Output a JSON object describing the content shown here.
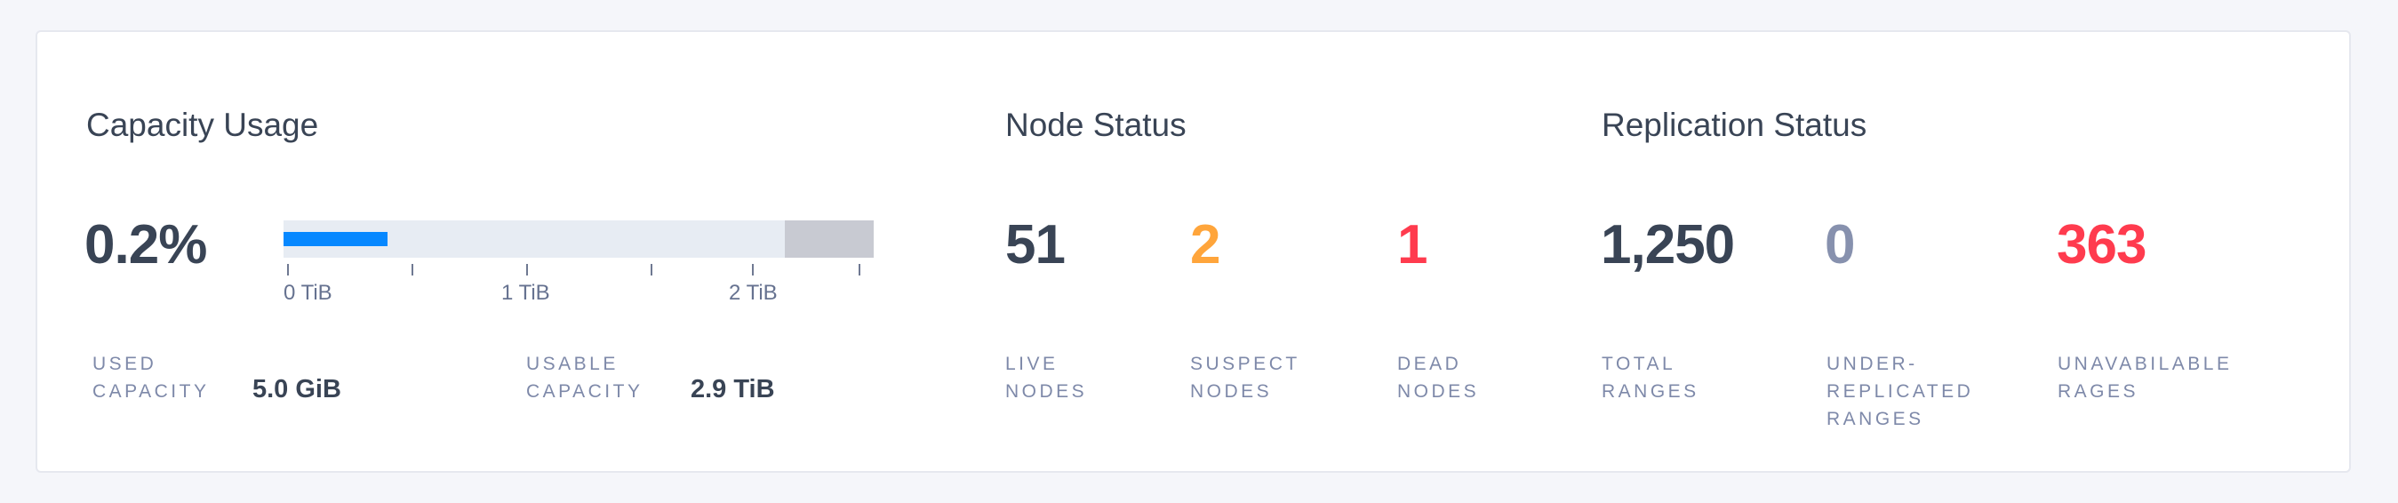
{
  "capacity": {
    "title": "Capacity Usage",
    "percent": "0.2%",
    "bar": {
      "used_fill_fraction": 0.176,
      "reserved_fraction": 0.15,
      "used_color": "#0788ff",
      "track_color": "#e7ecf3",
      "reserved_color": "#c8cad2"
    },
    "axis_labels": [
      "0 TiB",
      "1 TiB",
      "2 TiB"
    ],
    "used": {
      "label_line1": "USED",
      "label_line2": "CAPACITY",
      "value": "5.0 GiB"
    },
    "usable": {
      "label_line1": "USABLE",
      "label_line2": "CAPACITY",
      "value": "2.9 TiB"
    }
  },
  "nodes": {
    "title": "Node Status",
    "items": [
      {
        "value": "51",
        "label_line1": "LIVE",
        "label_line2": "NODES",
        "color": "#394455"
      },
      {
        "value": "2",
        "label_line1": "SUSPECT",
        "label_line2": "NODES",
        "color": "#ffa53b"
      },
      {
        "value": "1",
        "label_line1": "DEAD",
        "label_line2": "NODES",
        "color": "#ff3b4e"
      }
    ]
  },
  "replication": {
    "title": "Replication Status",
    "items": [
      {
        "value": "1,250",
        "label_line1": "TOTAL",
        "label_line2": "RANGES",
        "color": "#394455"
      },
      {
        "value": "0",
        "label_line1": "UNDER-",
        "label_line2": "REPLICATED",
        "label_line3": "RANGES",
        "color": "#8791ae"
      },
      {
        "value": "363",
        "label_line1": "UNAVABILABLE",
        "label_line2": "RAGES",
        "color": "#ff3b4e"
      }
    ]
  }
}
